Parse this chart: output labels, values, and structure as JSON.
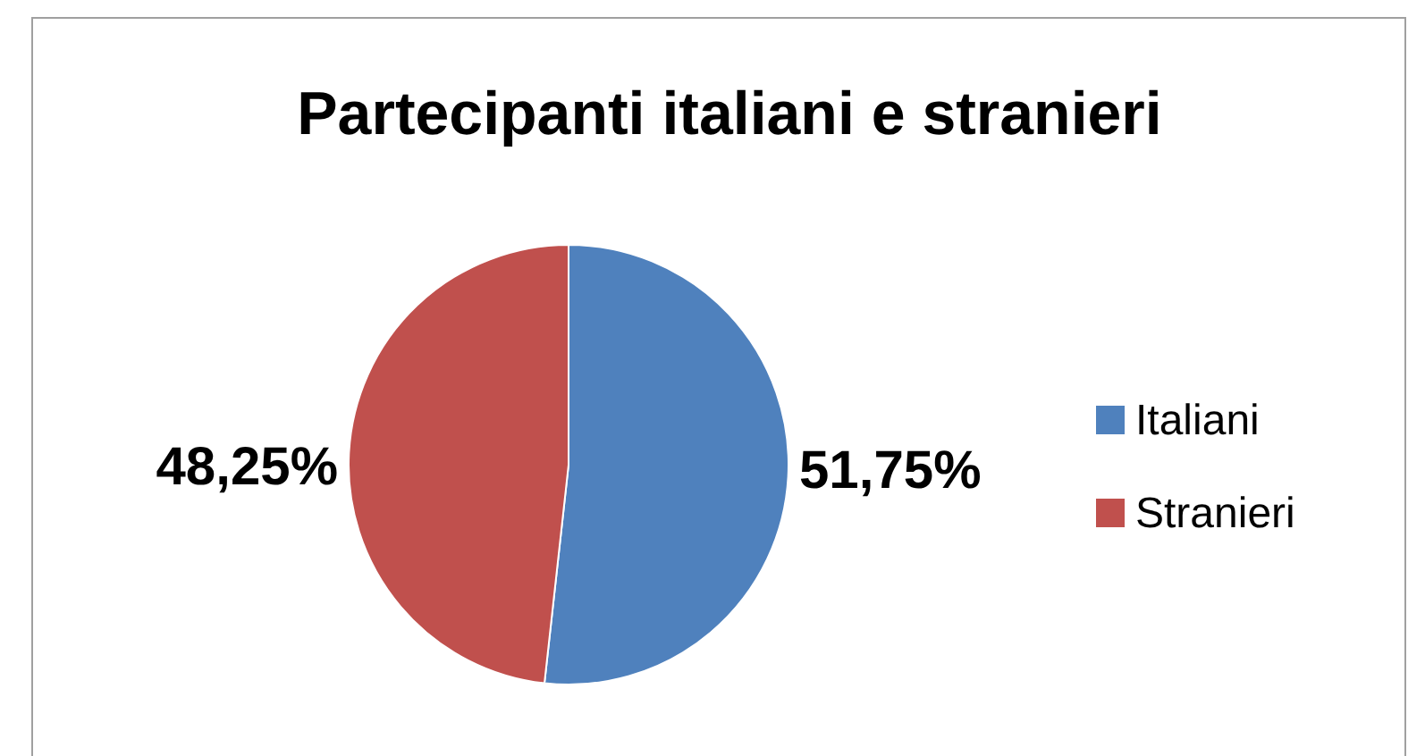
{
  "chart_data": {
    "type": "pie",
    "title": "Partecipanti italiani e stranieri",
    "categories": [
      "Italiani",
      "Stranieri"
    ],
    "values": [
      51.75,
      48.25
    ],
    "value_labels": [
      "51,75%",
      "48,25%"
    ],
    "colors": [
      "#4f81bd",
      "#c0504d"
    ],
    "legend": "right"
  }
}
